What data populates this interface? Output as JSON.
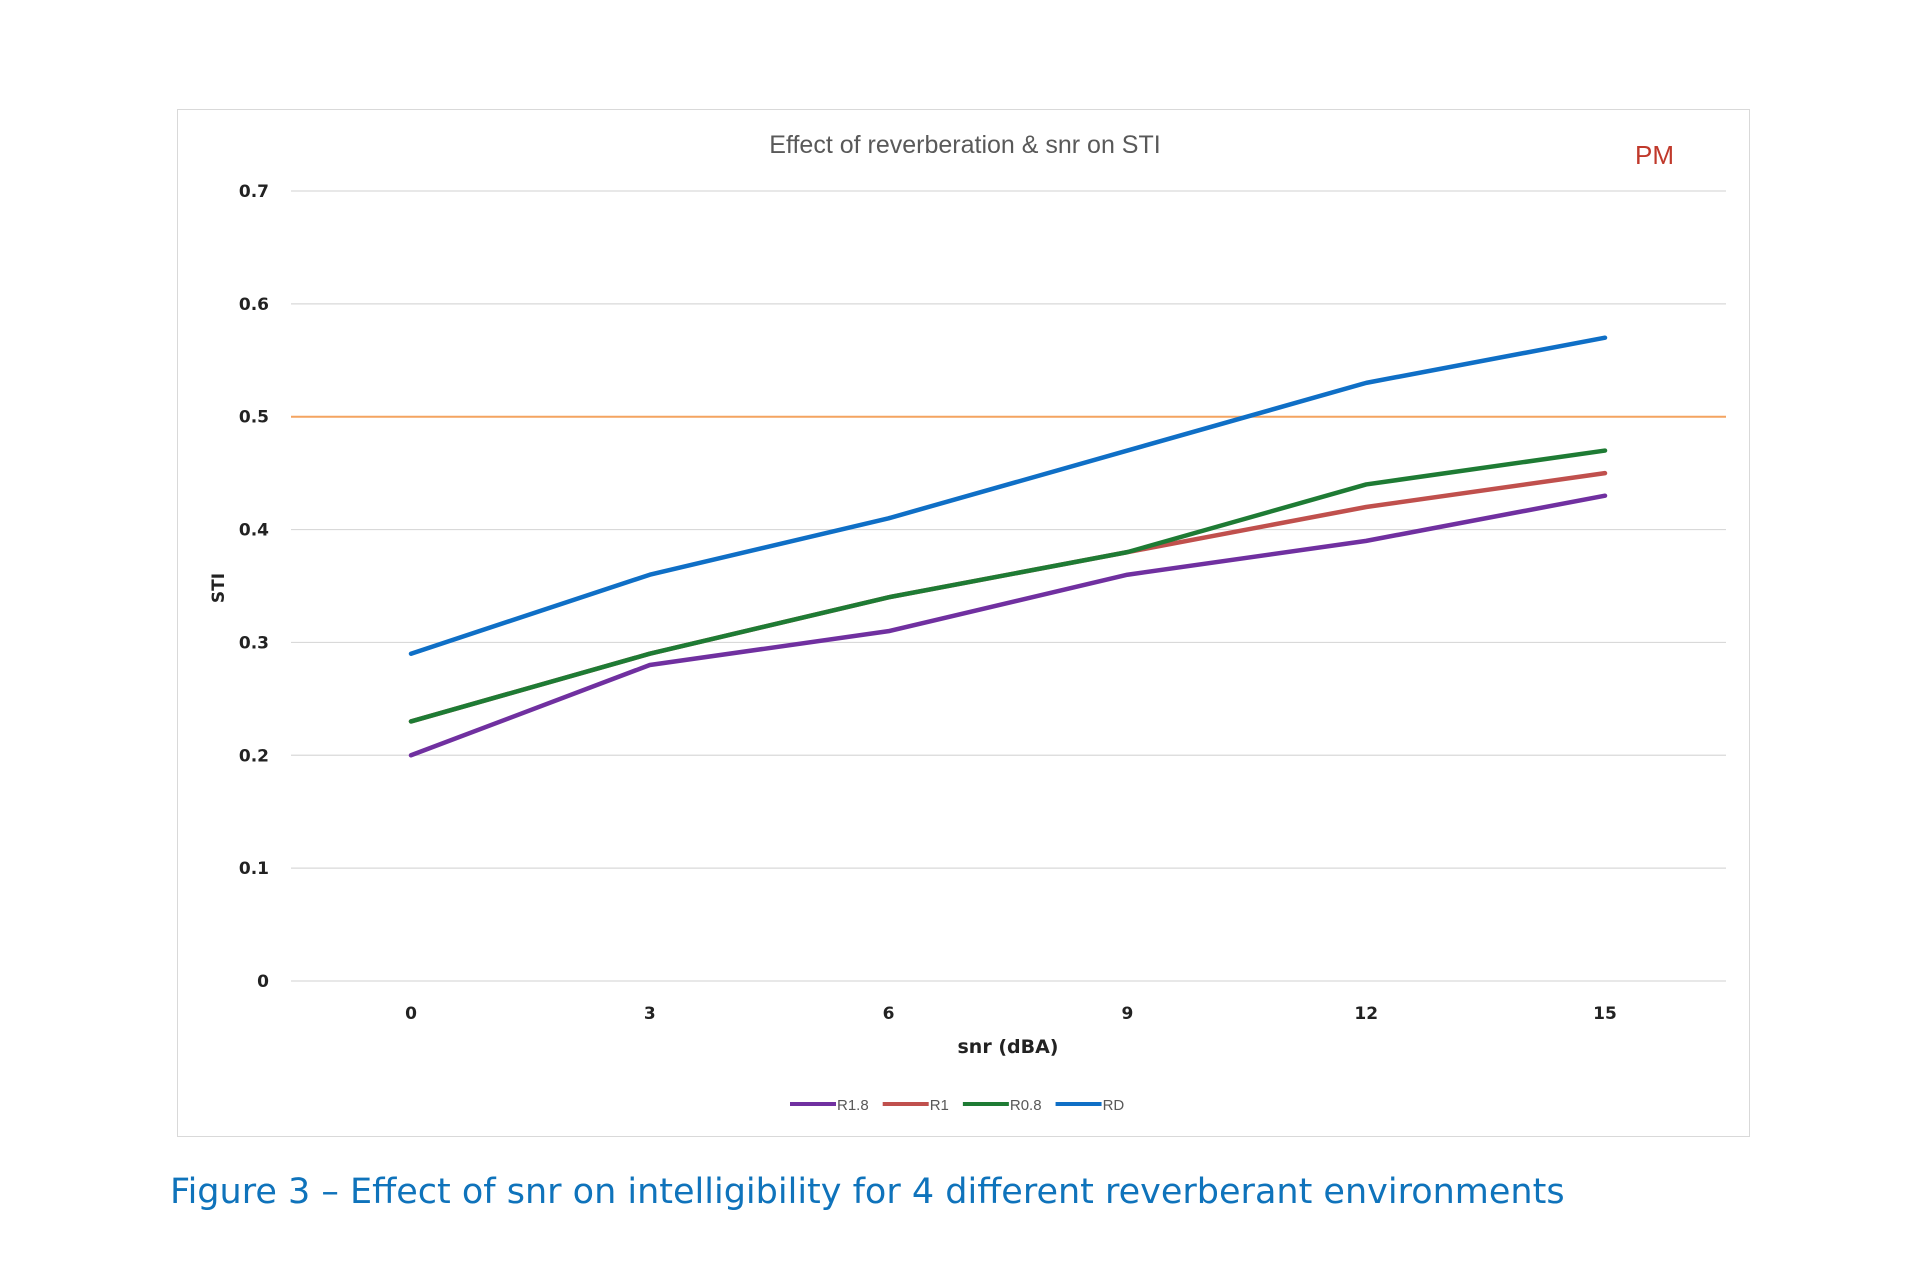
{
  "caption": "Figure 3 – Effect of snr on intelligibility for 4 different reverberant environments",
  "annotation": "PM",
  "colors": {
    "annotation": "#c0392b",
    "threshold": "#f4a460",
    "grid": "#d9d9d9",
    "caption": "#0f73bb"
  },
  "chart_data": {
    "type": "line",
    "title": "Effect of reverberation & snr on STI",
    "xlabel": "snr (dBA)",
    "ylabel": "STI",
    "x": [
      0,
      3,
      6,
      9,
      12,
      15
    ],
    "x_tick_labels": [
      "0",
      "3",
      "6",
      "9",
      "12",
      "15"
    ],
    "y_tick_labels": [
      "0",
      "0.1",
      "0.2",
      "0.3",
      "0.4",
      "0.5",
      "0.6",
      "0.7"
    ],
    "ylim": [
      0,
      0.7
    ],
    "grid": true,
    "legend_position": "bottom",
    "threshold": 0.5,
    "series": [
      {
        "name": "R1.8",
        "color": "#7030a0",
        "values": [
          0.2,
          0.28,
          0.31,
          0.36,
          0.39,
          0.43
        ]
      },
      {
        "name": "R1",
        "color": "#c0504d",
        "values": [
          0.23,
          0.29,
          0.34,
          0.38,
          0.42,
          0.45
        ]
      },
      {
        "name": "R0.8",
        "color": "#1e7b34",
        "values": [
          0.23,
          0.29,
          0.34,
          0.38,
          0.44,
          0.47
        ]
      },
      {
        "name": "RD",
        "color": "#0f6fc6",
        "values": [
          0.29,
          0.36,
          0.41,
          0.47,
          0.53,
          0.57
        ]
      }
    ]
  }
}
